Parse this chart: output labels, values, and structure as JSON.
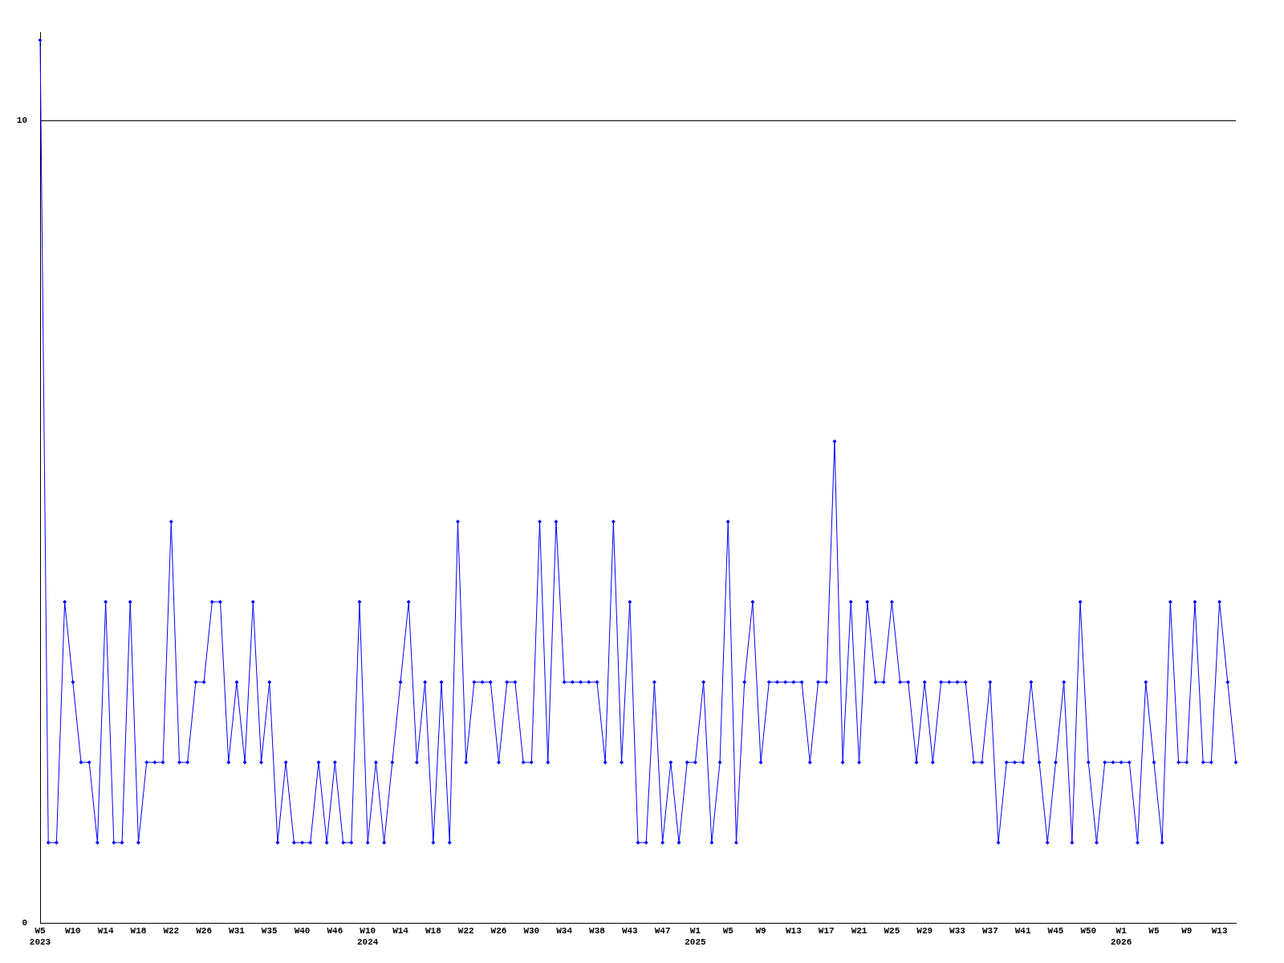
{
  "chart_data": {
    "type": "line",
    "categories": [
      "W5\n2023",
      null,
      null,
      null,
      "W10",
      null,
      null,
      null,
      "W14",
      null,
      null,
      null,
      "W18",
      null,
      null,
      null,
      "W22",
      null,
      null,
      null,
      "W26",
      null,
      null,
      null,
      "W31",
      null,
      null,
      null,
      "W35",
      null,
      null,
      null,
      "W40",
      null,
      null,
      null,
      "W46",
      null,
      null,
      null,
      "W10\n2024",
      null,
      null,
      null,
      "W14",
      null,
      null,
      null,
      "W18",
      null,
      null,
      null,
      "W22",
      null,
      null,
      null,
      "W26",
      null,
      null,
      null,
      "W30",
      null,
      null,
      null,
      "W34",
      null,
      null,
      null,
      "W38",
      null,
      null,
      null,
      "W43",
      null,
      null,
      null,
      "W47",
      null,
      null,
      null,
      "W1\n2025",
      null,
      null,
      null,
      "W5",
      null,
      null,
      null,
      "W9",
      null,
      null,
      null,
      "W13",
      null,
      null,
      null,
      "W17",
      null,
      null,
      null,
      "W21",
      null,
      null,
      null,
      "W25",
      null,
      null,
      null,
      "W29",
      null,
      null,
      null,
      "W33",
      null,
      null,
      null,
      "W37",
      null,
      null,
      null,
      "W41",
      null,
      null,
      null,
      "W45",
      null,
      null,
      null,
      "W50",
      null,
      null,
      null,
      "W1\n2026",
      null,
      null,
      null,
      "W5",
      null,
      null,
      null,
      "W9",
      null,
      null,
      null,
      "W13",
      null,
      null
    ],
    "series": [
      {
        "color": "#0000ff",
        "values": [
          11,
          1,
          1,
          4,
          3,
          2,
          2,
          1,
          4,
          1,
          1,
          4,
          1,
          2,
          2,
          2,
          5,
          2,
          2,
          3,
          3,
          4,
          4,
          2,
          3,
          2,
          4,
          2,
          3,
          1,
          2,
          1,
          1,
          1,
          2,
          1,
          2,
          1,
          1,
          4,
          1,
          2,
          1,
          2,
          3,
          4,
          2,
          3,
          1,
          3,
          1,
          5,
          2,
          3,
          3,
          3,
          2,
          3,
          3,
          2,
          2,
          5,
          2,
          5,
          3,
          3,
          3,
          3,
          3,
          2,
          5,
          2,
          4,
          1,
          1,
          3,
          1,
          2,
          1,
          2,
          2,
          3,
          1,
          2,
          5,
          1,
          3,
          4,
          2,
          3,
          3,
          3,
          3,
          3,
          2,
          3,
          3,
          6,
          2,
          4,
          2,
          4,
          3,
          3,
          4,
          3,
          3,
          2,
          3,
          2,
          3,
          3,
          3,
          3,
          2,
          2,
          3,
          1,
          2,
          2,
          2,
          3,
          2,
          1,
          2,
          3,
          1,
          4,
          2,
          1,
          2,
          2,
          2,
          2,
          1,
          3,
          2,
          1,
          4,
          2,
          2,
          4,
          2,
          2,
          4,
          3,
          2
        ]
      }
    ],
    "ylim": [
      0,
      11.1
    ],
    "yticks": [
      0,
      10
    ],
    "grid": "y",
    "marker": "diamond",
    "line_style": "solid"
  }
}
